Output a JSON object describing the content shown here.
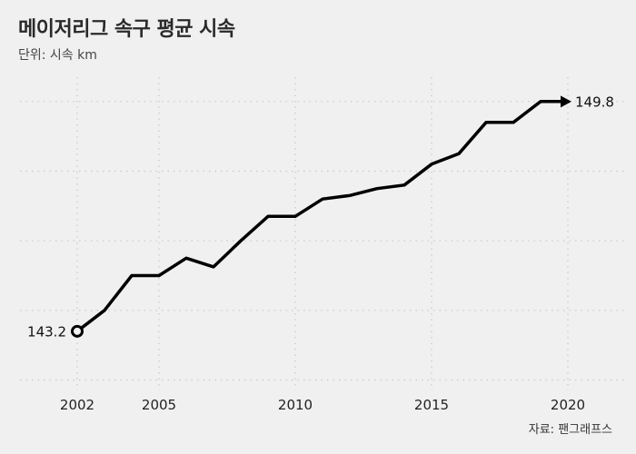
{
  "chart": {
    "title": "메이저리그 속구 평균 시속",
    "subtitle": "단위: 시속 km",
    "source": "자료: 팬그래프스"
  },
  "chart_data": {
    "type": "line",
    "title": "메이저리그 속구 평균 시속",
    "subtitle": "단위: 시속 km",
    "xlabel": "",
    "ylabel": "",
    "x": [
      2002,
      2003,
      2004,
      2005,
      2006,
      2007,
      2008,
      2009,
      2010,
      2011,
      2012,
      2013,
      2014,
      2015,
      2016,
      2017,
      2018,
      2019,
      2020
    ],
    "series": [
      {
        "values": [
          143.2,
          143.8,
          144.8,
          144.8,
          145.3,
          145.05,
          145.8,
          146.5,
          146.5,
          147.0,
          147.1,
          147.3,
          147.4,
          148.0,
          148.3,
          149.2,
          149.2,
          149.8,
          149.8
        ]
      }
    ],
    "xticks": [
      2002,
      2005,
      2010,
      2015,
      2020
    ],
    "xlim": [
      2002,
      2022
    ],
    "ylim": [
      141.5,
      150.5
    ],
    "grid": true,
    "gridlines": [
      141.8,
      143.8,
      145.8,
      147.8,
      149.8
    ],
    "annotations": [
      {
        "x": 2002,
        "y": 143.2,
        "text": "143.2",
        "marker": "open-circle"
      },
      {
        "x": 2020,
        "y": 149.8,
        "text": "149.8",
        "marker": "arrow"
      }
    ],
    "colors": {
      "line": "#000000",
      "grid": "#c8c8c8",
      "background": "#f0f0f0"
    }
  }
}
